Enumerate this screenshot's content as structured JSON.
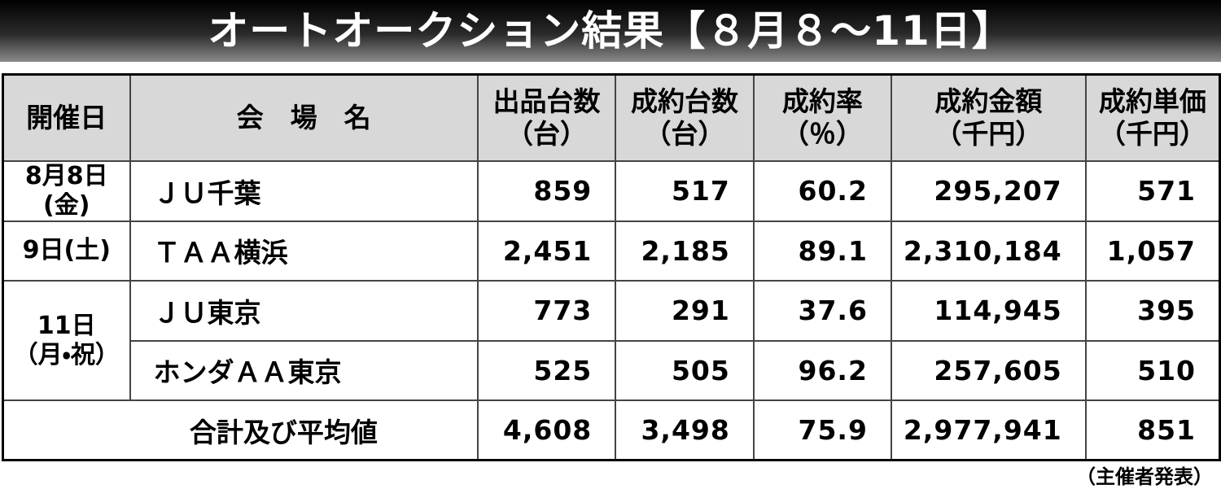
{
  "header": {
    "title": "オートオークション結果【８月８～11日】"
  },
  "table": {
    "columns": [
      [
        "開催日"
      ],
      [
        "会　場　名"
      ],
      [
        "出品台数",
        "（台）"
      ],
      [
        "成約台数",
        "（台）"
      ],
      [
        "成約率",
        "（％）"
      ],
      [
        "成約金額",
        "（千円）"
      ],
      [
        "成約単価",
        "（千円）"
      ]
    ],
    "groups": [
      {
        "date": [
          "8月8日(金)"
        ],
        "rows": [
          {
            "venue": "ＪＵ千葉",
            "cells": [
              "859",
              "517",
              "60.2",
              "295,207",
              "571"
            ]
          }
        ]
      },
      {
        "date": [
          "9日(土)"
        ],
        "rows": [
          {
            "venue": "ＴＡＡ横浜",
            "cells": [
              "2,451",
              "2,185",
              "89.1",
              "2,310,184",
              "1,057"
            ]
          }
        ]
      },
      {
        "date": [
          "11日",
          "（月・祝）"
        ],
        "rows": [
          {
            "venue": "ＪＵ東京",
            "cells": [
              "773",
              "291",
              "37.6",
              "114,945",
              "395"
            ]
          },
          {
            "venue": "ホンダＡＡ東京",
            "cells": [
              "525",
              "505",
              "96.2",
              "257,605",
              "510"
            ]
          }
        ]
      }
    ],
    "total": {
      "label": "合計及び平均値",
      "cells": [
        "4,608",
        "3,498",
        "75.9",
        "2,977,941",
        "851"
      ]
    }
  },
  "footer": {
    "source": "（主催者発表）"
  }
}
